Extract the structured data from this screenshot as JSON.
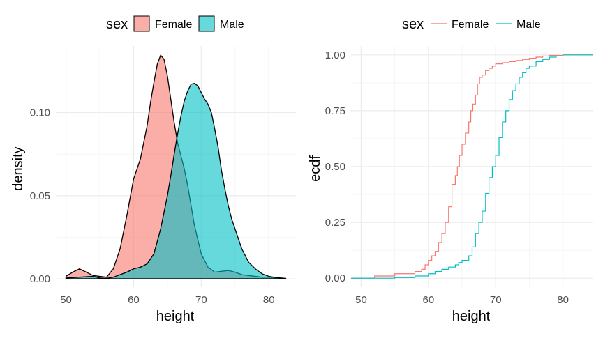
{
  "colors": {
    "female": "#F8766D",
    "male": "#00BFC4",
    "grid_major": "#EBEBEB",
    "grid_minor": "#F5F5F5",
    "text": "#000000",
    "tick_text": "#4D4D4D"
  },
  "chart_data": [
    {
      "type": "area",
      "xlabel": "height",
      "ylabel": "density",
      "xlim": [
        48.5,
        84
      ],
      "ylim": [
        -0.005,
        0.14
      ],
      "xticks": [
        50,
        60,
        70,
        80
      ],
      "yticks": [
        0.0,
        0.05,
        0.1
      ],
      "ytick_labels": [
        "0.00",
        "0.05",
        "0.10"
      ],
      "legend": {
        "title": "sex",
        "position": "top",
        "entries": [
          "Female",
          "Male"
        ]
      },
      "grid": true,
      "series": [
        {
          "name": "Female",
          "color": "#F8766D",
          "x": [
            50,
            51,
            52,
            53,
            54,
            55,
            56,
            57,
            58,
            59,
            60,
            61,
            62,
            62.5,
            63,
            63.5,
            64,
            64.5,
            65,
            65.5,
            66,
            66.5,
            67,
            67.5,
            68,
            68.5,
            69,
            70,
            71,
            72,
            73,
            74,
            75,
            76,
            77,
            78,
            79,
            80,
            81,
            82.5
          ],
          "y": [
            0.0015,
            0.004,
            0.006,
            0.004,
            0.002,
            0.0015,
            0.001,
            0.006,
            0.018,
            0.038,
            0.06,
            0.072,
            0.092,
            0.106,
            0.118,
            0.129,
            0.1345,
            0.132,
            0.122,
            0.108,
            0.094,
            0.082,
            0.074,
            0.066,
            0.056,
            0.044,
            0.032,
            0.015,
            0.007,
            0.004,
            0.0045,
            0.005,
            0.004,
            0.0025,
            0.002,
            0.0015,
            0.001,
            0.001,
            0.0005,
            0.0002
          ]
        },
        {
          "name": "Male",
          "color": "#00BFC4",
          "x": [
            50,
            52,
            54,
            55,
            56,
            57,
            58,
            59,
            60,
            61,
            62,
            63,
            64,
            65,
            65.5,
            66,
            66.5,
            67,
            67.5,
            68,
            68.5,
            69,
            69.5,
            70,
            70.5,
            71,
            71.5,
            72,
            72.5,
            73,
            73.5,
            74,
            74.5,
            75,
            76,
            77,
            78,
            79,
            80,
            81,
            82.5
          ],
          "y": [
            0.0005,
            0.001,
            0.0015,
            0.0005,
            0.0003,
            0.001,
            0.0025,
            0.004,
            0.006,
            0.007,
            0.009,
            0.015,
            0.03,
            0.05,
            0.062,
            0.075,
            0.087,
            0.098,
            0.107,
            0.113,
            0.117,
            0.1175,
            0.116,
            0.112,
            0.108,
            0.105,
            0.1,
            0.09,
            0.079,
            0.065,
            0.054,
            0.044,
            0.036,
            0.03,
            0.018,
            0.01,
            0.006,
            0.003,
            0.0015,
            0.0008,
            0.0003
          ]
        }
      ]
    },
    {
      "type": "line",
      "xlabel": "height",
      "ylabel": "ecdf",
      "xlim": [
        48.5,
        84.5
      ],
      "ylim": [
        -0.04,
        1.04
      ],
      "xticks": [
        50,
        60,
        70,
        80
      ],
      "yticks": [
        0.0,
        0.25,
        0.5,
        0.75,
        1.0
      ],
      "ytick_labels": [
        "0.00",
        "0.25",
        "0.50",
        "0.75",
        "1.00"
      ],
      "legend": {
        "title": "sex",
        "position": "top",
        "entries": [
          "Female",
          "Male"
        ]
      },
      "grid": true,
      "series": [
        {
          "name": "Female",
          "color": "#F8766D",
          "x": [
            48.5,
            51,
            52,
            55,
            58,
            59,
            59.5,
            60,
            60.5,
            61,
            61.5,
            62,
            62.5,
            63,
            63.5,
            64,
            64.3,
            64.6,
            65,
            65.5,
            66,
            66.3,
            66.6,
            67,
            67.3,
            67.6,
            68,
            68.5,
            69,
            69.5,
            70,
            71,
            72,
            73,
            74,
            75,
            76,
            77,
            78,
            80,
            84.5
          ],
          "y": [
            0,
            0,
            0.01,
            0.02,
            0.03,
            0.04,
            0.06,
            0.08,
            0.1,
            0.12,
            0.16,
            0.2,
            0.25,
            0.32,
            0.42,
            0.46,
            0.5,
            0.55,
            0.6,
            0.65,
            0.7,
            0.75,
            0.78,
            0.82,
            0.87,
            0.9,
            0.91,
            0.93,
            0.94,
            0.95,
            0.96,
            0.965,
            0.97,
            0.975,
            0.98,
            0.985,
            0.99,
            0.995,
            0.998,
            1.0,
            1.0
          ]
        },
        {
          "name": "Male",
          "color": "#00BFC4",
          "x": [
            48.5,
            55,
            58,
            60,
            61,
            62,
            63,
            64,
            64.5,
            65,
            66,
            66.5,
            67,
            67.5,
            68,
            68.5,
            69,
            69.5,
            70,
            70.5,
            71,
            71.5,
            72,
            72.5,
            73,
            73.5,
            74,
            74.5,
            75,
            76,
            77,
            78,
            79,
            80,
            84.5
          ],
          "y": [
            0,
            0.003,
            0.01,
            0.02,
            0.03,
            0.04,
            0.05,
            0.06,
            0.07,
            0.08,
            0.1,
            0.14,
            0.2,
            0.25,
            0.3,
            0.38,
            0.45,
            0.5,
            0.55,
            0.63,
            0.7,
            0.75,
            0.8,
            0.84,
            0.87,
            0.9,
            0.92,
            0.94,
            0.95,
            0.97,
            0.98,
            0.99,
            0.995,
            1.0,
            1.0
          ]
        }
      ]
    }
  ]
}
